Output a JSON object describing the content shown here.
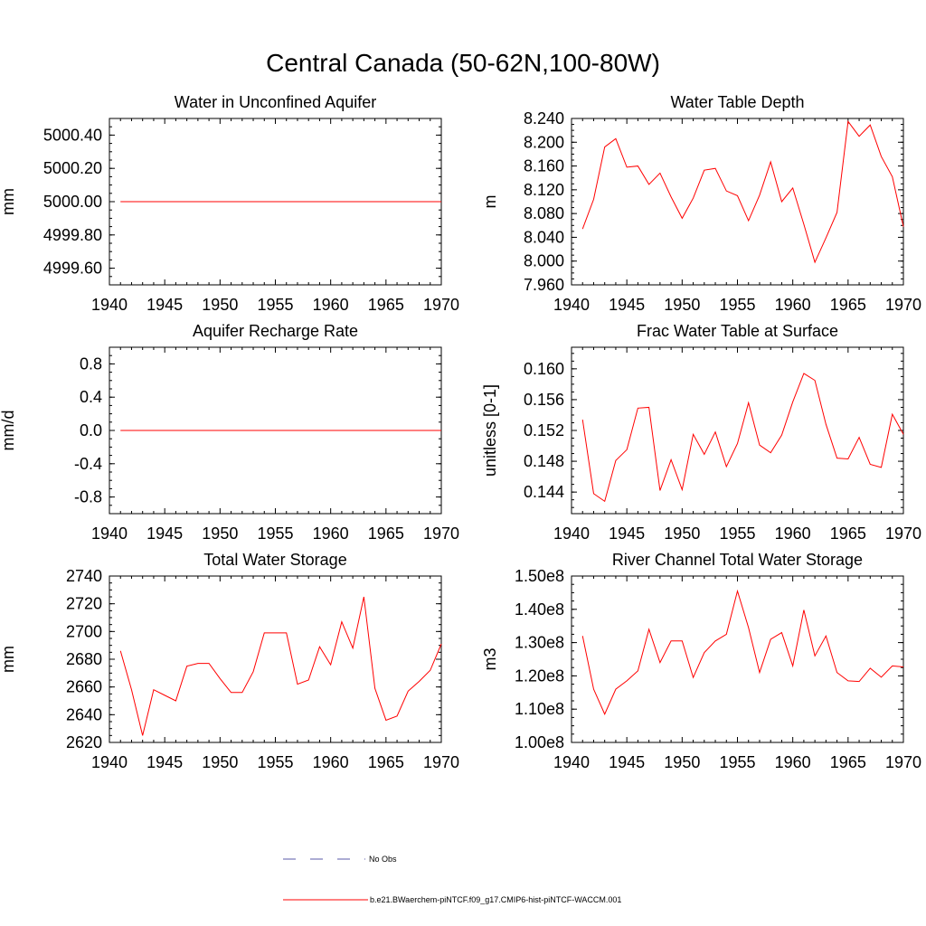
{
  "title": "Central Canada (50-62N,100-80W)",
  "legend": {
    "obs_label": "No Obs",
    "model_label": "b.e21.BWaerchem-piNTCF.f09_g17.CMIP6-hist-piNTCF-WACCM.001",
    "obs_color": "#5a5aa8",
    "model_color": "#ff0000"
  },
  "chart_data": [
    {
      "type": "line",
      "title": "Water in Unconfined Aquifer",
      "ylabel": "mm",
      "xlim": [
        1940,
        1970
      ],
      "ylim": [
        4999.5,
        5000.5
      ],
      "yticks": [
        4999.6,
        4999.8,
        5000.0,
        5000.2,
        5000.4
      ],
      "ytick_labels": [
        "4999.60",
        "4999.80",
        "5000.00",
        "5000.20",
        "5000.40"
      ],
      "xticks": [
        1940,
        1945,
        1950,
        1955,
        1960,
        1965,
        1970
      ],
      "xtick_labels": [
        "1940",
        "1945",
        "1950",
        "1955",
        "1960",
        "1965",
        "1970"
      ],
      "series": [
        {
          "x": [
            1941,
            1970
          ],
          "values": [
            5000.0,
            5000.0
          ],
          "color": "#ff0000"
        }
      ]
    },
    {
      "type": "line",
      "title": "Water Table Depth",
      "ylabel": "m",
      "xlim": [
        1940,
        1970
      ],
      "ylim": [
        7.96,
        8.24
      ],
      "yticks": [
        7.96,
        8.0,
        8.04,
        8.08,
        8.12,
        8.16,
        8.2,
        8.24
      ],
      "ytick_labels": [
        "7.960",
        "8.000",
        "8.040",
        "8.080",
        "8.120",
        "8.160",
        "8.200",
        "8.240"
      ],
      "xticks": [
        1940,
        1945,
        1950,
        1955,
        1960,
        1965,
        1970
      ],
      "xtick_labels": [
        "1940",
        "1945",
        "1950",
        "1955",
        "1960",
        "1965",
        "1970"
      ],
      "series": [
        {
          "x": [
            1941,
            1942,
            1943,
            1944,
            1945,
            1946,
            1947,
            1948,
            1949,
            1950,
            1951,
            1952,
            1953,
            1954,
            1955,
            1956,
            1957,
            1958,
            1959,
            1960,
            1961,
            1962,
            1963,
            1964,
            1965,
            1966,
            1967,
            1968,
            1969,
            1970
          ],
          "values": [
            8.054,
            8.104,
            8.192,
            8.206,
            8.158,
            8.16,
            8.129,
            8.148,
            8.108,
            8.072,
            8.106,
            8.153,
            8.156,
            8.118,
            8.11,
            8.068,
            8.111,
            8.167,
            8.1,
            8.123,
            8.062,
            7.998,
            8.039,
            8.082,
            8.235,
            8.21,
            8.229,
            8.176,
            8.142,
            8.058
          ],
          "color": "#ff0000"
        }
      ]
    },
    {
      "type": "line",
      "title": "Aquifer Recharge Rate",
      "ylabel": "mm/d",
      "xlim": [
        1940,
        1970
      ],
      "ylim": [
        -1.0,
        1.0
      ],
      "yticks": [
        -0.8,
        -0.4,
        0.0,
        0.4,
        0.8
      ],
      "ytick_labels": [
        "-0.8",
        "-0.4",
        "0.0",
        "0.4",
        "0.8"
      ],
      "xticks": [
        1940,
        1945,
        1950,
        1955,
        1960,
        1965,
        1970
      ],
      "xtick_labels": [
        "1940",
        "1945",
        "1950",
        "1955",
        "1960",
        "1965",
        "1970"
      ],
      "series": [
        {
          "x": [
            1941,
            1970
          ],
          "values": [
            0.0,
            0.0
          ],
          "color": "#ff0000"
        }
      ]
    },
    {
      "type": "line",
      "title": "Frac Water Table at Surface",
      "ylabel": "unitless [0-1]",
      "xlim": [
        1940,
        1970
      ],
      "ylim": [
        0.1412,
        0.1628
      ],
      "yticks": [
        0.144,
        0.148,
        0.152,
        0.156,
        0.16
      ],
      "ytick_labels": [
        "0.144",
        "0.148",
        "0.152",
        "0.156",
        "0.160"
      ],
      "xticks": [
        1940,
        1945,
        1950,
        1955,
        1960,
        1965,
        1970
      ],
      "xtick_labels": [
        "1940",
        "1945",
        "1950",
        "1955",
        "1960",
        "1965",
        "1970"
      ],
      "series": [
        {
          "x": [
            1941,
            1942,
            1943,
            1944,
            1945,
            1946,
            1947,
            1948,
            1949,
            1950,
            1951,
            1952,
            1953,
            1954,
            1955,
            1956,
            1957,
            1958,
            1959,
            1960,
            1961,
            1962,
            1963,
            1964,
            1965,
            1966,
            1967,
            1968,
            1969,
            1970
          ],
          "values": [
            0.1534,
            0.1438,
            0.1428,
            0.1481,
            0.1495,
            0.1549,
            0.155,
            0.1442,
            0.1482,
            0.1443,
            0.1515,
            0.1489,
            0.1518,
            0.1473,
            0.1503,
            0.1556,
            0.1501,
            0.1491,
            0.1514,
            0.1557,
            0.1594,
            0.1585,
            0.1528,
            0.1484,
            0.1483,
            0.1511,
            0.1476,
            0.1472,
            0.1541,
            0.1515
          ],
          "color": "#ff0000"
        }
      ]
    },
    {
      "type": "line",
      "title": "Total Water Storage",
      "ylabel": "mm",
      "xlim": [
        1940,
        1970
      ],
      "ylim": [
        2620,
        2740
      ],
      "yticks": [
        2620,
        2640,
        2660,
        2680,
        2700,
        2720,
        2740
      ],
      "ytick_labels": [
        "2620",
        "2640",
        "2660",
        "2680",
        "2700",
        "2720",
        "2740"
      ],
      "xticks": [
        1940,
        1945,
        1950,
        1955,
        1960,
        1965,
        1970
      ],
      "xtick_labels": [
        "1940",
        "1945",
        "1950",
        "1955",
        "1960",
        "1965",
        "1970"
      ],
      "series": [
        {
          "x": [
            1941,
            1942,
            1943,
            1944,
            1945,
            1946,
            1947,
            1948,
            1949,
            1950,
            1951,
            1952,
            1953,
            1954,
            1955,
            1956,
            1957,
            1958,
            1959,
            1960,
            1961,
            1962,
            1963,
            1964,
            1965,
            1966,
            1967,
            1968,
            1969,
            1970
          ],
          "values": [
            2686,
            2658,
            2625,
            2658,
            2654,
            2650,
            2675,
            2677,
            2677,
            2666,
            2656,
            2656,
            2671,
            2699,
            2699,
            2699,
            2662,
            2665,
            2689,
            2676,
            2707,
            2688,
            2725,
            2659,
            2636,
            2639,
            2657,
            2664,
            2672,
            2691
          ],
          "color": "#ff0000"
        }
      ]
    },
    {
      "type": "line",
      "title": "River Channel Total Water Storage",
      "ylabel": "m3",
      "xlim": [
        1940,
        1970
      ],
      "ylim": [
        100000000,
        150000000
      ],
      "yticks": [
        100000000,
        110000000,
        120000000,
        130000000,
        140000000,
        150000000
      ],
      "ytick_labels": [
        "1.00e8",
        "1.10e8",
        "1.20e8",
        "1.30e8",
        "1.40e8",
        "1.50e8"
      ],
      "xticks": [
        1940,
        1945,
        1950,
        1955,
        1960,
        1965,
        1970
      ],
      "xtick_labels": [
        "1940",
        "1945",
        "1950",
        "1955",
        "1960",
        "1965",
        "1970"
      ],
      "series": [
        {
          "x": [
            1941,
            1942,
            1943,
            1944,
            1945,
            1946,
            1947,
            1948,
            1949,
            1950,
            1951,
            1952,
            1953,
            1954,
            1955,
            1956,
            1957,
            1958,
            1959,
            1960,
            1961,
            1962,
            1963,
            1964,
            1965,
            1966,
            1967,
            1968,
            1969,
            1970
          ],
          "values": [
            132000000,
            116000000,
            108500000,
            116000000,
            118500000,
            121500000,
            134000000,
            124000000,
            130500000,
            130500000,
            119500000,
            127000000,
            130500000,
            132500000,
            145500000,
            134500000,
            121000000,
            131000000,
            133000000,
            123000000,
            139800000,
            126000000,
            132000000,
            121000000,
            118500000,
            118300000,
            122300000,
            119600000,
            123000000,
            122700000
          ],
          "color": "#ff0000"
        }
      ]
    }
  ]
}
